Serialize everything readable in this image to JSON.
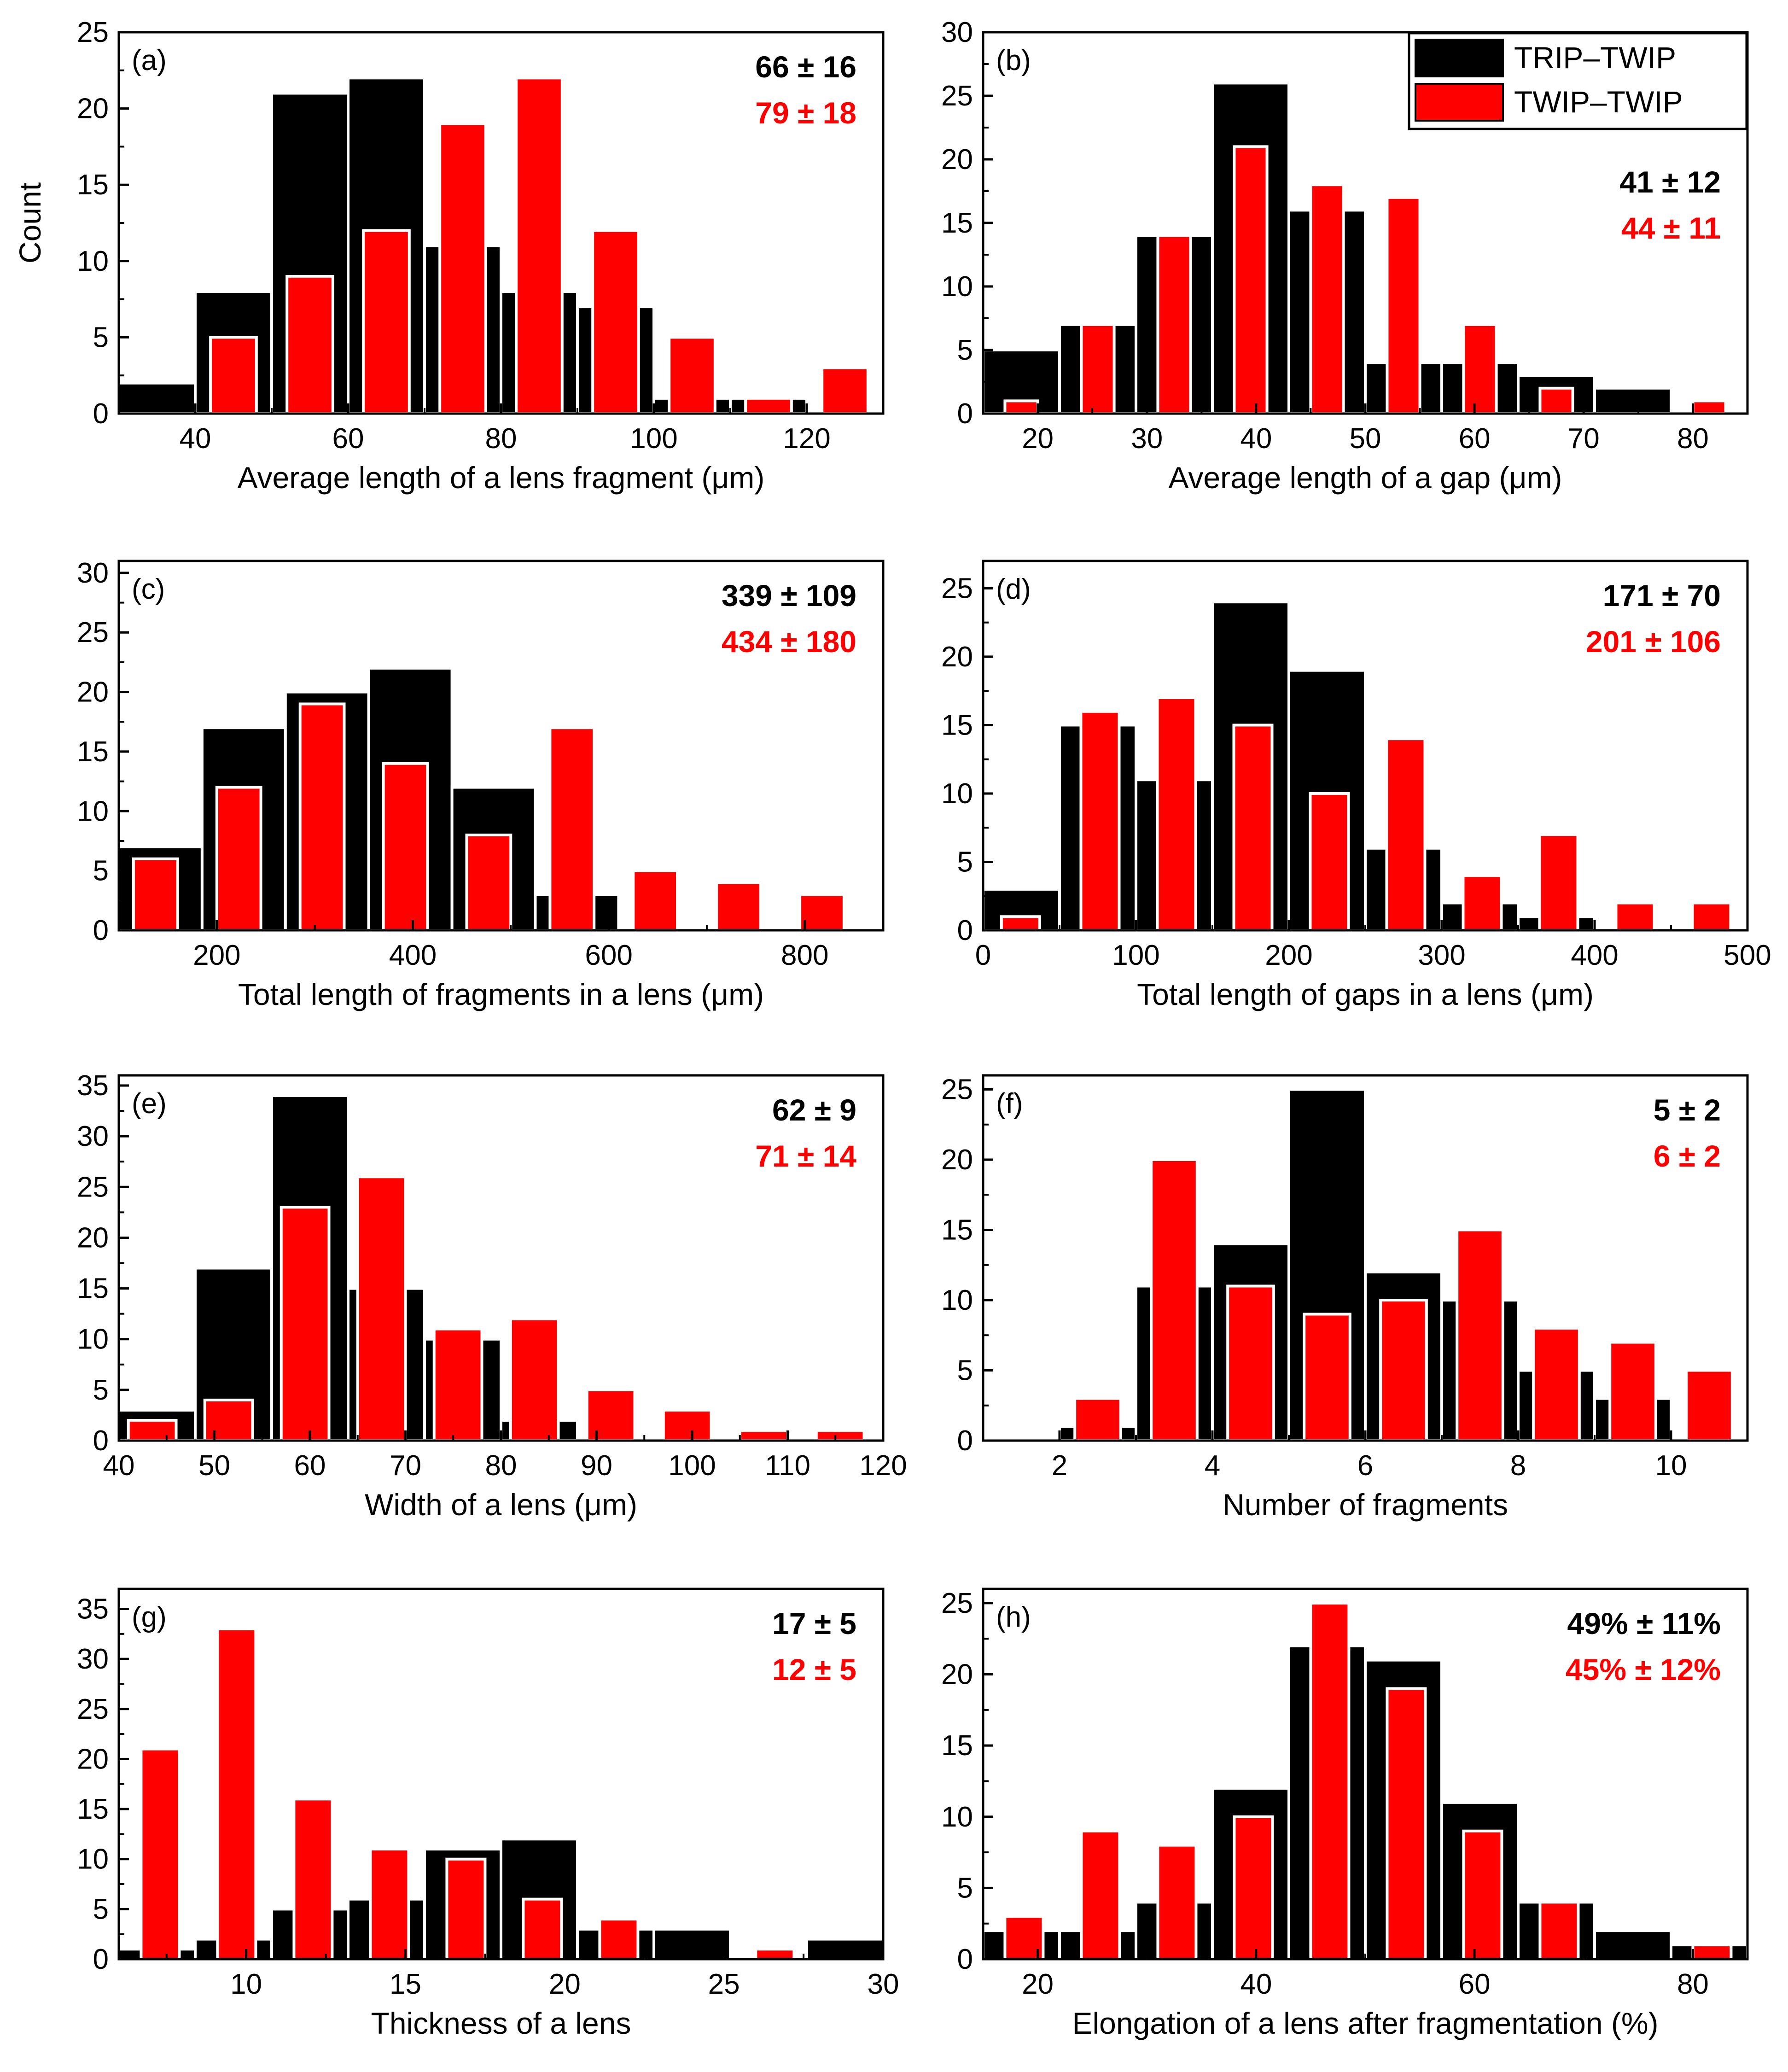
{
  "figure": {
    "colors": {
      "trip_twip": "#000000",
      "twip_twip": "#ff0000",
      "bar_edge": "#ffffff"
    },
    "legend": {
      "entries": [
        {
          "label": "TRIP–TWIP",
          "color": "#000000"
        },
        {
          "label": "TWIP–TWIP",
          "color": "#ff0000"
        }
      ],
      "placement": "top-right of panel (b)"
    }
  },
  "chart_data": [
    {
      "panel": "(a)",
      "type": "bar",
      "xlabel": "Average length of a lens fragment (μm)",
      "ylabel": "Count",
      "xlim": [
        30,
        130
      ],
      "ylim": [
        0,
        25
      ],
      "xticks": [
        40,
        60,
        80,
        100,
        120
      ],
      "yticks": [
        0,
        5,
        10,
        15,
        20,
        25
      ],
      "ylabel_ticks": true,
      "stats": [
        {
          "text": "66 ± 16",
          "series": "TRIP–TWIP"
        },
        {
          "text": "79 ± 18",
          "series": "TWIP–TWIP"
        }
      ],
      "series": [
        {
          "name": "TRIP–TWIP",
          "bins": [
            [
              30,
              40,
              2
            ],
            [
              40,
              50,
              8
            ],
            [
              50,
              60,
              21
            ],
            [
              60,
              70,
              22
            ],
            [
              70,
              80,
              11
            ],
            [
              80,
              90,
              8
            ],
            [
              90,
              100,
              7
            ],
            [
              100,
              110,
              1
            ],
            [
              110,
              120,
              1
            ]
          ]
        },
        {
          "name": "TWIP–TWIP",
          "bins": [
            [
              42,
              48,
              5
            ],
            [
              52,
              58,
              9
            ],
            [
              62,
              68,
              12
            ],
            [
              72,
              78,
              19
            ],
            [
              82,
              88,
              22
            ],
            [
              92,
              98,
              12
            ],
            [
              102,
              108,
              5
            ],
            [
              112,
              118,
              1
            ],
            [
              122,
              128,
              3
            ]
          ]
        }
      ]
    },
    {
      "panel": "(b)",
      "type": "bar",
      "xlabel": "Average length of a gap (μm)",
      "ylabel": "",
      "xlim": [
        15,
        85
      ],
      "ylim": [
        0,
        30
      ],
      "xticks": [
        20,
        30,
        40,
        50,
        60,
        70,
        80
      ],
      "yticks": [
        0,
        5,
        10,
        15,
        20,
        25,
        30
      ],
      "stats": [
        {
          "text": "41 ± 12",
          "series": "TRIP–TWIP"
        },
        {
          "text": "44 ± 11",
          "series": "TWIP–TWIP"
        }
      ],
      "series": [
        {
          "name": "TRIP–TWIP",
          "bins": [
            [
              15,
              22,
              5
            ],
            [
              22,
              29,
              7
            ],
            [
              29,
              36,
              14
            ],
            [
              36,
              43,
              26
            ],
            [
              43,
              50,
              16
            ],
            [
              50,
              57,
              4
            ],
            [
              57,
              64,
              4
            ],
            [
              64,
              71,
              3
            ],
            [
              71,
              78,
              2
            ]
          ]
        },
        {
          "name": "TWIP–TWIP",
          "bins": [
            [
              17,
              20,
              1
            ],
            [
              24,
              27,
              7
            ],
            [
              31,
              34,
              14
            ],
            [
              38,
              41,
              21
            ],
            [
              45,
              48,
              18
            ],
            [
              52,
              55,
              17
            ],
            [
              59,
              62,
              7
            ],
            [
              66,
              69,
              2
            ],
            [
              80,
              83,
              1
            ]
          ]
        }
      ]
    },
    {
      "panel": "(c)",
      "type": "bar",
      "xlabel": "Total length of fragments in a lens (μm)",
      "ylabel": "",
      "xlim": [
        100,
        880
      ],
      "ylim": [
        0,
        31
      ],
      "xticks": [
        200,
        400,
        600,
        800
      ],
      "yticks": [
        0,
        5,
        10,
        15,
        20,
        25,
        30
      ],
      "stats": [
        {
          "text": "339 ± 109",
          "series": "TRIP–TWIP"
        },
        {
          "text": "434 ± 180",
          "series": "TWIP–TWIP"
        }
      ],
      "series": [
        {
          "name": "TRIP–TWIP",
          "bins": [
            [
              100,
              185,
              7
            ],
            [
              185,
              270,
              17
            ],
            [
              270,
              355,
              20
            ],
            [
              355,
              440,
              22
            ],
            [
              440,
              525,
              12
            ],
            [
              525,
              610,
              3
            ],
            [
              610,
              695,
              0
            ]
          ]
        },
        {
          "name": "TWIP–TWIP",
          "bins": [
            [
              115,
              160,
              6
            ],
            [
              200,
              245,
              12
            ],
            [
              285,
              330,
              19
            ],
            [
              370,
              415,
              14
            ],
            [
              455,
              500,
              8
            ],
            [
              540,
              585,
              17
            ],
            [
              625,
              670,
              5
            ],
            [
              710,
              755,
              4
            ],
            [
              795,
              840,
              3
            ]
          ]
        }
      ]
    },
    {
      "panel": "(d)",
      "type": "bar",
      "xlabel": "Total length of gaps in a lens (μm)",
      "ylabel": "",
      "xlim": [
        0,
        500
      ],
      "ylim": [
        0,
        27
      ],
      "xticks": [
        0,
        100,
        200,
        300,
        400,
        500
      ],
      "yticks": [
        0,
        5,
        10,
        15,
        20,
        25
      ],
      "stats": [
        {
          "text": "171 ± 70",
          "series": "TRIP–TWIP"
        },
        {
          "text": "201 ± 106",
          "series": "TWIP–TWIP"
        }
      ],
      "series": [
        {
          "name": "TRIP–TWIP",
          "bins": [
            [
              0,
              50,
              3
            ],
            [
              50,
              100,
              15
            ],
            [
              100,
              150,
              11
            ],
            [
              150,
              200,
              24
            ],
            [
              200,
              250,
              19
            ],
            [
              250,
              300,
              6
            ],
            [
              300,
              350,
              2
            ],
            [
              350,
              400,
              1
            ]
          ]
        },
        {
          "name": "TWIP–TWIP",
          "bins": [
            [
              12,
              37,
              1
            ],
            [
              64,
              89,
              16
            ],
            [
              114,
              139,
              17
            ],
            [
              164,
              189,
              15
            ],
            [
              214,
              239,
              10
            ],
            [
              264,
              289,
              14
            ],
            [
              314,
              339,
              4
            ],
            [
              364,
              389,
              7
            ],
            [
              414,
              439,
              2
            ],
            [
              464,
              489,
              2
            ]
          ]
        }
      ]
    },
    {
      "panel": "(e)",
      "type": "bar",
      "xlabel": "Width of a lens (μm)",
      "ylabel": "",
      "xlim": [
        40,
        120
      ],
      "ylim": [
        0,
        36
      ],
      "xticks": [
        40,
        50,
        60,
        70,
        80,
        90,
        100,
        110,
        120
      ],
      "yticks": [
        0,
        5,
        10,
        15,
        20,
        25,
        30,
        35
      ],
      "stats": [
        {
          "text": "62 ± 9",
          "series": "TRIP–TWIP"
        },
        {
          "text": "71 ± 14",
          "series": "TWIP–TWIP"
        }
      ],
      "series": [
        {
          "name": "TRIP–TWIP",
          "bins": [
            [
              40,
              48,
              3
            ],
            [
              48,
              56,
              17
            ],
            [
              56,
              64,
              34
            ],
            [
              64,
              72,
              15
            ],
            [
              72,
              80,
              10
            ],
            [
              80,
              88,
              2
            ]
          ]
        },
        {
          "name": "TWIP–TWIP",
          "bins": [
            [
              41,
              46,
              2
            ],
            [
              49,
              54,
              4
            ],
            [
              57,
              62,
              23
            ],
            [
              65,
              70,
              26
            ],
            [
              73,
              78,
              11
            ],
            [
              81,
              86,
              12
            ],
            [
              89,
              94,
              5
            ],
            [
              97,
              102,
              3
            ],
            [
              105,
              110,
              1
            ],
            [
              113,
              118,
              1
            ]
          ]
        }
      ]
    },
    {
      "panel": "(f)",
      "type": "bar",
      "xlabel": "Number of fragments",
      "ylabel": "",
      "xlim": [
        1,
        11
      ],
      "ylim": [
        0,
        26
      ],
      "xticks": [
        2,
        4,
        6,
        8,
        10
      ],
      "yticks": [
        0,
        5,
        10,
        15,
        20,
        25
      ],
      "stats": [
        {
          "text": "5 ± 2",
          "series": "TRIP–TWIP"
        },
        {
          "text": "6 ± 2",
          "series": "TWIP–TWIP"
        }
      ],
      "series": [
        {
          "name": "TRIP–TWIP",
          "bins": [
            [
              2,
              3,
              1
            ],
            [
              3,
              4,
              11
            ],
            [
              4,
              5,
              14
            ],
            [
              5,
              6,
              25
            ],
            [
              6,
              7,
              12
            ],
            [
              7,
              8,
              10
            ],
            [
              8,
              9,
              5
            ],
            [
              9,
              10,
              3
            ]
          ]
        },
        {
          "name": "TWIP–TWIP",
          "bins": [
            [
              2.2,
              2.8,
              3
            ],
            [
              3.2,
              3.8,
              20
            ],
            [
              4.2,
              4.8,
              11
            ],
            [
              5.2,
              5.8,
              9
            ],
            [
              6.2,
              6.8,
              10
            ],
            [
              7.2,
              7.8,
              15
            ],
            [
              8.2,
              8.8,
              8
            ],
            [
              9.2,
              9.8,
              7
            ],
            [
              10.2,
              10.8,
              5
            ]
          ]
        }
      ]
    },
    {
      "panel": "(g)",
      "type": "bar",
      "xlabel": "Thickness of a lens",
      "ylabel": "",
      "xlim": [
        6,
        30
      ],
      "ylim": [
        0,
        37
      ],
      "xticks": [
        10,
        15,
        20,
        25,
        30
      ],
      "yticks": [
        0,
        5,
        10,
        15,
        20,
        25,
        30,
        35
      ],
      "stats": [
        {
          "text": "17 ± 5",
          "series": "TRIP–TWIP"
        },
        {
          "text": "12 ± 5",
          "series": "TWIP–TWIP"
        }
      ],
      "series": [
        {
          "name": "TRIP–TWIP",
          "bins": [
            [
              6,
              8.4,
              1
            ],
            [
              8.4,
              10.8,
              2
            ],
            [
              10.8,
              13.2,
              5
            ],
            [
              13.2,
              15.6,
              6
            ],
            [
              15.6,
              18,
              11
            ],
            [
              18,
              20.4,
              12
            ],
            [
              20.4,
              22.8,
              3
            ],
            [
              22.8,
              25.2,
              3
            ],
            [
              27.6,
              30,
              2
            ]
          ]
        },
        {
          "name": "TWIP–TWIP",
          "bins": [
            [
              6.7,
              7.9,
              21
            ],
            [
              9.1,
              10.3,
              33
            ],
            [
              11.5,
              12.7,
              16
            ],
            [
              13.9,
              15.1,
              11
            ],
            [
              16.3,
              17.5,
              10
            ],
            [
              18.7,
              19.9,
              6
            ],
            [
              21.1,
              22.3,
              4
            ],
            [
              26,
              27.2,
              1
            ]
          ]
        }
      ]
    },
    {
      "panel": "(h)",
      "type": "bar",
      "xlabel": "Elongation of a lens after fragmentation (%)",
      "ylabel": "",
      "xlim": [
        15,
        85
      ],
      "ylim": [
        0,
        26
      ],
      "xticks": [
        20,
        40,
        60,
        80
      ],
      "yticks": [
        0,
        5,
        10,
        15,
        20,
        25
      ],
      "stats": [
        {
          "text": "49% ± 11%",
          "series": "TRIP–TWIP"
        },
        {
          "text": "45% ± 12%",
          "series": "TWIP–TWIP"
        }
      ],
      "series": [
        {
          "name": "TRIP–TWIP",
          "bins": [
            [
              15,
              22,
              2
            ],
            [
              22,
              29,
              2
            ],
            [
              29,
              36,
              4
            ],
            [
              36,
              43,
              12
            ],
            [
              43,
              50,
              22
            ],
            [
              50,
              57,
              21
            ],
            [
              57,
              64,
              11
            ],
            [
              64,
              71,
              4
            ],
            [
              71,
              78,
              2
            ],
            [
              78,
              85,
              1
            ]
          ]
        },
        {
          "name": "TWIP–TWIP",
          "bins": [
            [
              17,
              20.5,
              3
            ],
            [
              24,
              27.5,
              9
            ],
            [
              31,
              34.5,
              8
            ],
            [
              38,
              41.5,
              10
            ],
            [
              45,
              48.5,
              25
            ],
            [
              52,
              55.5,
              19
            ],
            [
              59,
              62.5,
              9
            ],
            [
              66,
              69.5,
              4
            ],
            [
              80,
              83.5,
              1
            ]
          ]
        }
      ]
    }
  ]
}
